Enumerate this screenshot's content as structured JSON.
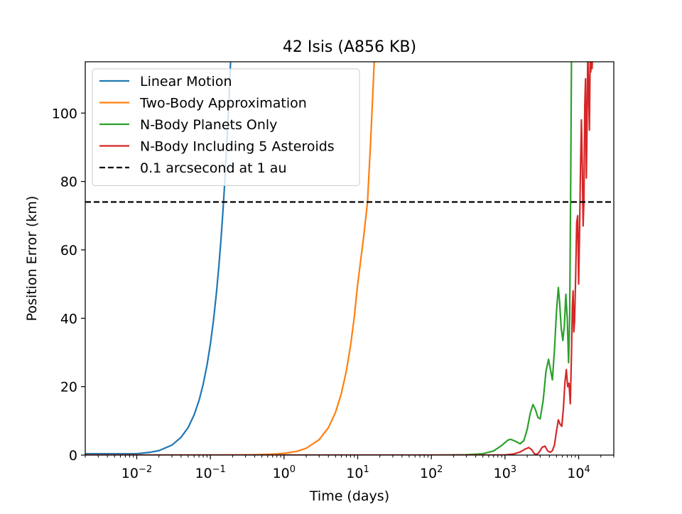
{
  "chart_data": {
    "type": "line",
    "title": "42 Isis (A856 KB)",
    "xlabel": "Time (days)",
    "ylabel": "Position Error (km)",
    "xscale": "log",
    "xlim": [
      0.002,
      30000
    ],
    "ylim": [
      0,
      115
    ],
    "grid": false,
    "legend_position": "top-left",
    "x_ticks": [
      {
        "value": 0.01,
        "base": "10",
        "exp": "−2"
      },
      {
        "value": 0.1,
        "base": "10",
        "exp": "−1"
      },
      {
        "value": 1,
        "base": "10",
        "exp": "0"
      },
      {
        "value": 10,
        "base": "10",
        "exp": "1"
      },
      {
        "value": 100,
        "base": "10",
        "exp": "2"
      },
      {
        "value": 1000,
        "base": "10",
        "exp": "3"
      },
      {
        "value": 10000,
        "base": "10",
        "exp": "4"
      }
    ],
    "y_ticks": [
      {
        "value": 0,
        "label": "0"
      },
      {
        "value": 20,
        "label": "20"
      },
      {
        "value": 40,
        "label": "40"
      },
      {
        "value": 60,
        "label": "60"
      },
      {
        "value": 80,
        "label": "80"
      },
      {
        "value": 100,
        "label": "100"
      }
    ],
    "series": [
      {
        "name": "Linear Motion",
        "color": "#1f77b4",
        "style": "solid",
        "points": [
          [
            0.002,
            0.4
          ],
          [
            0.005,
            0.4
          ],
          [
            0.01,
            0.4
          ],
          [
            0.015,
            0.8
          ],
          [
            0.02,
            1.3
          ],
          [
            0.03,
            2.9
          ],
          [
            0.04,
            5.2
          ],
          [
            0.05,
            8.1
          ],
          [
            0.06,
            11.7
          ],
          [
            0.07,
            15.9
          ],
          [
            0.08,
            20.8
          ],
          [
            0.09,
            26.3
          ],
          [
            0.1,
            32.5
          ],
          [
            0.11,
            39.3
          ],
          [
            0.12,
            46.8
          ],
          [
            0.13,
            54.9
          ],
          [
            0.14,
            63.7
          ],
          [
            0.15,
            73.1
          ],
          [
            0.16,
            83.2
          ],
          [
            0.17,
            93.9
          ],
          [
            0.18,
            105.3
          ],
          [
            0.19,
            117.3
          ]
        ]
      },
      {
        "name": "Two-Body Approximation",
        "color": "#ff7f0e",
        "style": "solid",
        "points": [
          [
            0.002,
            0.0
          ],
          [
            0.1,
            0.0
          ],
          [
            0.3,
            0.05
          ],
          [
            0.5,
            0.15
          ],
          [
            0.8,
            0.35
          ],
          [
            1,
            0.5
          ],
          [
            1.5,
            1.1
          ],
          [
            2,
            2.0
          ],
          [
            3,
            4.5
          ],
          [
            4,
            8.0
          ],
          [
            5,
            12.5
          ],
          [
            6,
            18.0
          ],
          [
            7,
            24.5
          ],
          [
            8,
            32.0
          ],
          [
            9,
            40.5
          ],
          [
            10,
            50.0
          ],
          [
            12,
            63.5
          ],
          [
            13.6,
            74.0
          ],
          [
            15,
            92.0
          ],
          [
            16,
            105.0
          ],
          [
            17,
            118.0
          ]
        ]
      },
      {
        "name": "N-Body Planets Only",
        "color": "#2ca02c",
        "style": "solid",
        "points": [
          [
            0.002,
            0.0
          ],
          [
            100,
            0.0
          ],
          [
            300,
            0.1
          ],
          [
            500,
            0.4
          ],
          [
            700,
            1.2
          ],
          [
            900,
            2.8
          ],
          [
            1100,
            4.4
          ],
          [
            1200,
            4.6
          ],
          [
            1400,
            4.0
          ],
          [
            1600,
            3.3
          ],
          [
            1800,
            4.2
          ],
          [
            2000,
            7.5
          ],
          [
            2200,
            12.2
          ],
          [
            2400,
            14.8
          ],
          [
            2600,
            13.2
          ],
          [
            2800,
            11.0
          ],
          [
            3000,
            10.6
          ],
          [
            3300,
            16.0
          ],
          [
            3600,
            24.5
          ],
          [
            3900,
            28.0
          ],
          [
            4100,
            25.5
          ],
          [
            4400,
            22.0
          ],
          [
            4700,
            31.0
          ],
          [
            5000,
            42.0
          ],
          [
            5300,
            49.0
          ],
          [
            5500,
            45.0
          ],
          [
            5800,
            37.0
          ],
          [
            6100,
            33.5
          ],
          [
            6400,
            38.0
          ],
          [
            6700,
            47.0
          ],
          [
            7000,
            40.0
          ],
          [
            7300,
            27.0
          ],
          [
            7550,
            40.0
          ],
          [
            7800,
            80.0
          ],
          [
            8000,
            118.0
          ]
        ]
      },
      {
        "name": "N-Body Including 5 Asteroids",
        "color": "#d62728",
        "style": "solid",
        "points": [
          [
            0.002,
            0.0
          ],
          [
            500,
            0.0
          ],
          [
            1000,
            0.05
          ],
          [
            1300,
            0.3
          ],
          [
            1600,
            0.9
          ],
          [
            1900,
            1.8
          ],
          [
            2100,
            2.2
          ],
          [
            2300,
            1.6
          ],
          [
            2500,
            0.4
          ],
          [
            2700,
            0.2
          ],
          [
            2900,
            0.8
          ],
          [
            3200,
            2.3
          ],
          [
            3500,
            2.6
          ],
          [
            3800,
            1.2
          ],
          [
            4100,
            0.8
          ],
          [
            4400,
            1.3
          ],
          [
            4700,
            3.0
          ],
          [
            5000,
            7.0
          ],
          [
            5300,
            10.3
          ],
          [
            5600,
            9.0
          ],
          [
            5900,
            8.4
          ],
          [
            6200,
            13.5
          ],
          [
            6500,
            21.0
          ],
          [
            6800,
            25.0
          ],
          [
            7100,
            20.0
          ],
          [
            7400,
            21.0
          ],
          [
            7700,
            15.0
          ],
          [
            8000,
            30.0
          ],
          [
            8200,
            43.0
          ],
          [
            8400,
            48.0
          ],
          [
            8600,
            36.0
          ],
          [
            8800,
            39.0
          ],
          [
            9100,
            52.0
          ],
          [
            9400,
            68.0
          ],
          [
            9700,
            70.0
          ],
          [
            10000,
            50.0
          ],
          [
            10300,
            66.0
          ],
          [
            10600,
            84.0
          ],
          [
            10900,
            98.0
          ],
          [
            11200,
            85.0
          ],
          [
            11500,
            67.0
          ],
          [
            11800,
            75.0
          ],
          [
            12100,
            102.0
          ],
          [
            12400,
            110.0
          ],
          [
            12700,
            81.0
          ],
          [
            13000,
            96.0
          ],
          [
            13300,
            118.0
          ],
          [
            13700,
            105.0
          ],
          [
            14000,
            95.0
          ],
          [
            14300,
            115.0
          ],
          [
            14600,
            112.0
          ],
          [
            14900,
            118.0
          ],
          [
            15200,
            113.0
          ],
          [
            15500,
            118.0
          ]
        ]
      },
      {
        "name": "0.1 arcsecond at 1 au",
        "color": "#000000",
        "style": "dashed",
        "points": [
          [
            0.002,
            74.0
          ],
          [
            30000,
            74.0
          ]
        ]
      }
    ]
  }
}
